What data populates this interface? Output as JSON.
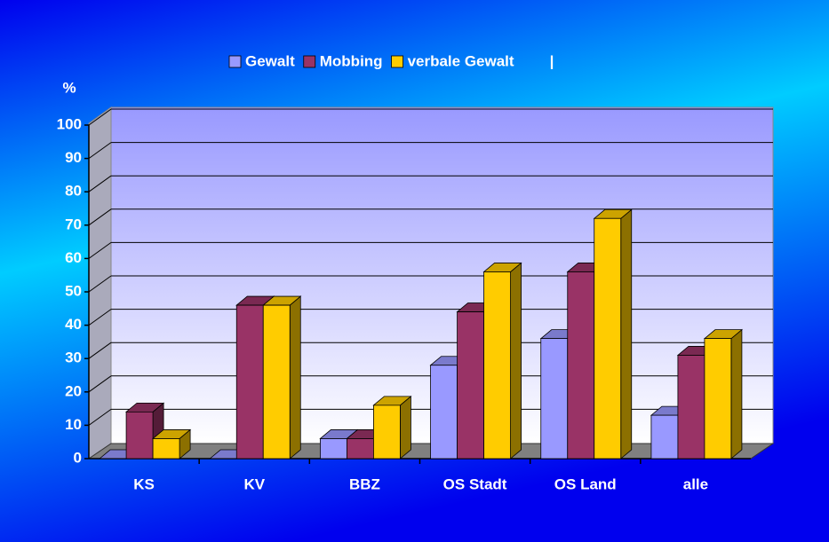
{
  "chart_data": {
    "type": "bar3d",
    "y_label": "%",
    "legend_note": "|",
    "categories": [
      "KS",
      "KV",
      "BBZ",
      "OS Stadt",
      "OS Land",
      "alle"
    ],
    "series": [
      {
        "name": "Gewalt",
        "color": "#9999ff",
        "values": [
          0,
          0,
          6,
          28,
          36,
          13
        ]
      },
      {
        "name": "Mobbing",
        "color": "#993366",
        "values": [
          14,
          46,
          6,
          44,
          56,
          31
        ]
      },
      {
        "name": "verbale Gewalt",
        "color": "#ffcc00",
        "values": [
          6,
          46,
          16,
          56,
          72,
          36
        ]
      }
    ],
    "ylim": [
      0,
      100
    ],
    "yticks": [
      0,
      10,
      20,
      30,
      40,
      50,
      60,
      70,
      80,
      90,
      100
    ],
    "grid": true,
    "legend": "top"
  }
}
